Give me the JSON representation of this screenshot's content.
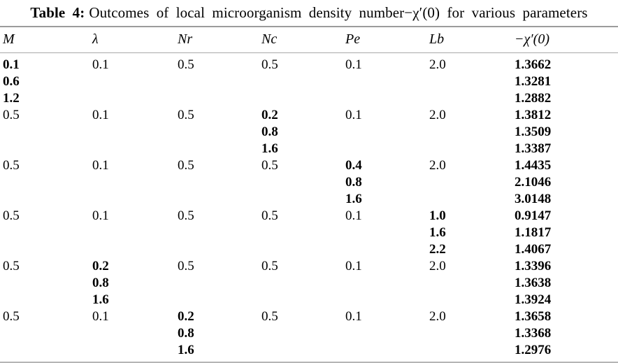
{
  "caption": {
    "label": "Table 4:",
    "text": "Outcomes of local microorganism density number−χ′(0) for various parameters"
  },
  "table": {
    "columns": [
      {
        "id": "m",
        "label": "M"
      },
      {
        "id": "lambda",
        "label": "λ"
      },
      {
        "id": "nr",
        "label": "Nr"
      },
      {
        "id": "nc",
        "label": "Nc"
      },
      {
        "id": "pe",
        "label": "Pe"
      },
      {
        "id": "lb",
        "label": "Lb"
      },
      {
        "id": "chi",
        "label": "−χ′(0)"
      }
    ],
    "rows": [
      [
        {
          "v": "0.1",
          "b": true
        },
        {
          "v": "0.1"
        },
        {
          "v": "0.5"
        },
        {
          "v": "0.5"
        },
        {
          "v": "0.1"
        },
        {
          "v": "2.0"
        },
        {
          "v": "1.3662",
          "b": true
        }
      ],
      [
        {
          "v": "0.6",
          "b": true
        },
        "",
        "",
        "",
        "",
        "",
        {
          "v": "1.3281",
          "b": true
        }
      ],
      [
        {
          "v": "1.2",
          "b": true
        },
        "",
        "",
        "",
        "",
        "",
        {
          "v": "1.2882",
          "b": true
        }
      ],
      [
        {
          "v": "0.5"
        },
        {
          "v": "0.1"
        },
        {
          "v": "0.5"
        },
        {
          "v": "0.2",
          "b": true
        },
        {
          "v": "0.1"
        },
        {
          "v": "2.0"
        },
        {
          "v": "1.3812",
          "b": true
        }
      ],
      [
        "",
        "",
        "",
        {
          "v": "0.8",
          "b": true
        },
        "",
        "",
        {
          "v": "1.3509",
          "b": true
        }
      ],
      [
        "",
        "",
        "",
        {
          "v": "1.6",
          "b": true
        },
        "",
        "",
        {
          "v": "1.3387",
          "b": true
        }
      ],
      [
        {
          "v": "0.5"
        },
        {
          "v": "0.1"
        },
        {
          "v": "0.5"
        },
        {
          "v": "0.5"
        },
        {
          "v": "0.4",
          "b": true
        },
        {
          "v": "2.0"
        },
        {
          "v": "1.4435",
          "b": true
        }
      ],
      [
        "",
        "",
        "",
        "",
        {
          "v": "0.8",
          "b": true
        },
        "",
        {
          "v": "2.1046",
          "b": true
        }
      ],
      [
        "",
        "",
        "",
        "",
        {
          "v": "1.6",
          "b": true
        },
        "",
        {
          "v": "3.0148",
          "b": true
        }
      ],
      [
        {
          "v": "0.5"
        },
        {
          "v": "0.1"
        },
        {
          "v": "0.5"
        },
        {
          "v": "0.5"
        },
        {
          "v": "0.1"
        },
        {
          "v": "1.0",
          "b": true
        },
        {
          "v": "0.9147",
          "b": true
        }
      ],
      [
        "",
        "",
        "",
        "",
        "",
        {
          "v": "1.6",
          "b": true
        },
        {
          "v": "1.1817",
          "b": true
        }
      ],
      [
        "",
        "",
        "",
        "",
        "",
        {
          "v": "2.2",
          "b": true
        },
        {
          "v": "1.4067",
          "b": true
        }
      ],
      [
        {
          "v": "0.5"
        },
        {
          "v": "0.2",
          "b": true
        },
        {
          "v": "0.5"
        },
        {
          "v": "0.5"
        },
        {
          "v": "0.1"
        },
        {
          "v": "2.0"
        },
        {
          "v": "1.3396",
          "b": true
        }
      ],
      [
        "",
        {
          "v": "0.8",
          "b": true
        },
        "",
        "",
        "",
        "",
        {
          "v": "1.3638",
          "b": true
        }
      ],
      [
        "",
        {
          "v": "1.6",
          "b": true
        },
        "",
        "",
        "",
        "",
        {
          "v": "1.3924",
          "b": true
        }
      ],
      [
        {
          "v": "0.5"
        },
        {
          "v": "0.1"
        },
        {
          "v": "0.2",
          "b": true
        },
        {
          "v": "0.5"
        },
        {
          "v": "0.1"
        },
        {
          "v": "2.0"
        },
        {
          "v": "1.3658",
          "b": true
        }
      ],
      [
        "",
        "",
        {
          "v": "0.8",
          "b": true
        },
        "",
        "",
        "",
        {
          "v": "1.3368",
          "b": true
        }
      ],
      [
        "",
        "",
        {
          "v": "1.6",
          "b": true
        },
        "",
        "",
        "",
        {
          "v": "1.2976",
          "b": true
        }
      ]
    ]
  }
}
